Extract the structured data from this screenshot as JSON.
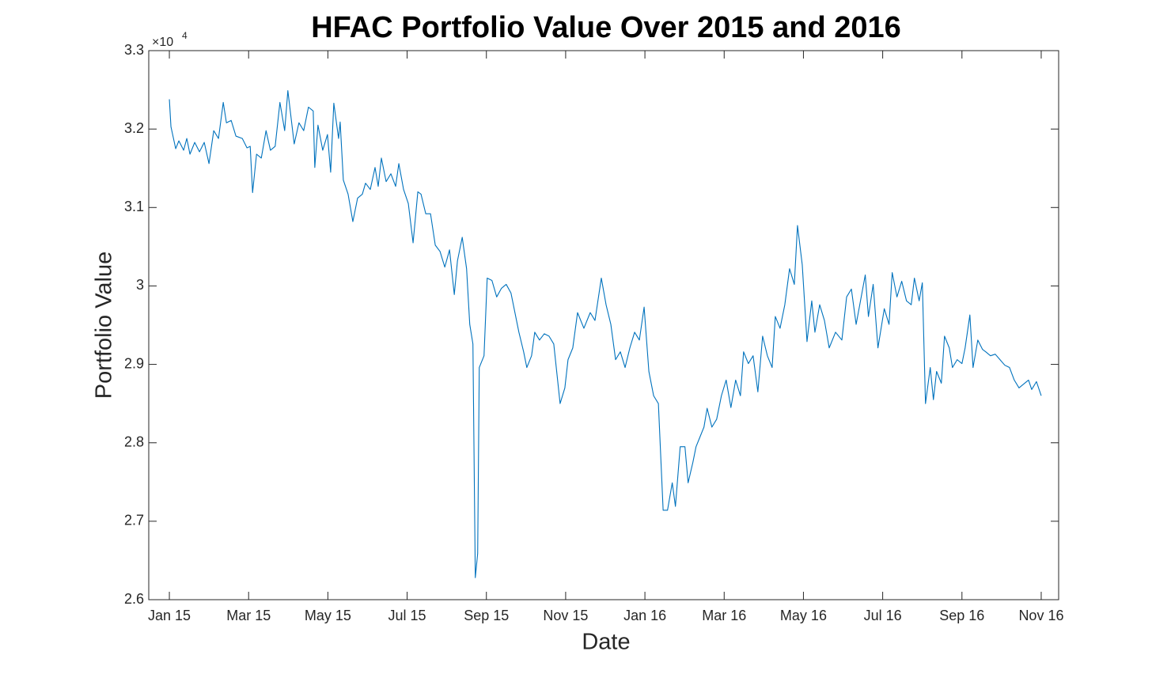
{
  "chart_data": {
    "type": "line",
    "title": "HFAC Portfolio Value Over 2015 and 2016",
    "x_label": "Date",
    "y_label": "Portfolio Value",
    "y_multiplier": {
      "base": "×10",
      "exponent": "4"
    },
    "xlim": [
      -0.52,
      22.44
    ],
    "xticks": [
      {
        "value": 0,
        "label": "Jan 15"
      },
      {
        "value": 2,
        "label": "Mar 15"
      },
      {
        "value": 4,
        "label": "May 15"
      },
      {
        "value": 6,
        "label": "Jul 15"
      },
      {
        "value": 8,
        "label": "Sep 15"
      },
      {
        "value": 10,
        "label": "Nov 15"
      },
      {
        "value": 12,
        "label": "Jan 16"
      },
      {
        "value": 14,
        "label": "Mar 16"
      },
      {
        "value": 16,
        "label": "May 16"
      },
      {
        "value": 18,
        "label": "Jul 16"
      },
      {
        "value": 20,
        "label": "Sep 16"
      },
      {
        "value": 22,
        "label": "Nov 16"
      }
    ],
    "ylim": [
      2.6,
      3.3
    ],
    "yticks": [
      2.6,
      2.7,
      2.8,
      2.9,
      3,
      3.1,
      3.2,
      3.3
    ],
    "grid": false,
    "x": [
      0,
      0.04,
      0.16,
      0.24,
      0.36,
      0.44,
      0.52,
      0.64,
      0.76,
      0.88,
      1.0,
      1.12,
      1.24,
      1.36,
      1.44,
      1.56,
      1.68,
      1.84,
      1.96,
      2.04,
      2.1,
      2.2,
      2.32,
      2.44,
      2.55,
      2.67,
      2.79,
      2.91,
      2.99,
      3.15,
      3.27,
      3.39,
      3.51,
      3.63,
      3.67,
      3.75,
      3.87,
      3.99,
      4.07,
      4.15,
      4.27,
      4.31,
      4.39,
      4.51,
      4.63,
      4.75,
      4.87,
      4.95,
      5.07,
      5.19,
      5.27,
      5.35,
      5.47,
      5.59,
      5.71,
      5.79,
      5.91,
      6.03,
      6.15,
      6.27,
      6.35,
      6.47,
      6.59,
      6.71,
      6.83,
      6.95,
      7.07,
      7.19,
      7.27,
      7.39,
      7.5,
      7.58,
      7.66,
      7.72,
      7.78,
      7.82,
      7.94,
      8.02,
      8.14,
      8.26,
      8.38,
      8.5,
      8.62,
      8.74,
      8.82,
      8.94,
      9.02,
      9.14,
      9.22,
      9.34,
      9.46,
      9.58,
      9.7,
      9.86,
      9.98,
      10.06,
      10.18,
      10.3,
      10.46,
      10.62,
      10.74,
      10.9,
      11.02,
      11.14,
      11.26,
      11.38,
      11.5,
      11.62,
      11.74,
      11.86,
      11.98,
      12.1,
      12.22,
      12.34,
      12.46,
      12.57,
      12.69,
      12.77,
      12.89,
      13.01,
      13.09,
      13.21,
      13.29,
      13.37,
      13.49,
      13.57,
      13.69,
      13.81,
      13.93,
      14.05,
      14.17,
      14.29,
      14.41,
      14.49,
      14.61,
      14.73,
      14.85,
      14.97,
      15.09,
      15.21,
      15.29,
      15.41,
      15.53,
      15.65,
      15.77,
      15.85,
      15.97,
      16.09,
      16.21,
      16.29,
      16.41,
      16.53,
      16.65,
      16.81,
      16.97,
      17.09,
      17.21,
      17.33,
      17.44,
      17.56,
      17.64,
      17.76,
      17.88,
      18.04,
      18.16,
      18.24,
      18.36,
      18.48,
      18.6,
      18.72,
      18.8,
      18.92,
      19.0,
      19.08,
      19.2,
      19.28,
      19.36,
      19.48,
      19.56,
      19.68,
      19.76,
      19.88,
      20.0,
      20.08,
      20.2,
      20.28,
      20.4,
      20.52,
      20.6,
      20.72,
      20.84,
      20.96,
      21.08,
      21.2,
      21.32,
      21.44,
      21.56,
      21.68,
      21.76,
      21.88,
      22.0
    ],
    "series": [
      {
        "color": "#0072bd",
        "values": [
          3.238,
          3.203,
          3.175,
          3.185,
          3.173,
          3.188,
          3.168,
          3.183,
          3.171,
          3.183,
          3.156,
          3.198,
          3.188,
          3.234,
          3.208,
          3.211,
          3.191,
          3.188,
          3.176,
          3.178,
          3.119,
          3.168,
          3.163,
          3.198,
          3.173,
          3.178,
          3.234,
          3.198,
          3.249,
          3.181,
          3.208,
          3.198,
          3.228,
          3.223,
          3.151,
          3.205,
          3.173,
          3.193,
          3.145,
          3.233,
          3.188,
          3.209,
          3.135,
          3.117,
          3.082,
          3.112,
          3.117,
          3.131,
          3.123,
          3.151,
          3.127,
          3.163,
          3.133,
          3.143,
          3.127,
          3.156,
          3.123,
          3.105,
          3.055,
          3.12,
          3.117,
          3.092,
          3.092,
          3.052,
          3.044,
          3.024,
          3.046,
          2.989,
          3.032,
          3.062,
          3.022,
          2.951,
          2.926,
          2.628,
          2.659,
          2.896,
          2.911,
          3.01,
          3.007,
          2.986,
          2.997,
          3.002,
          2.991,
          2.961,
          2.941,
          2.916,
          2.896,
          2.911,
          2.941,
          2.931,
          2.939,
          2.936,
          2.926,
          2.85,
          2.87,
          2.906,
          2.921,
          2.966,
          2.946,
          2.966,
          2.956,
          3.01,
          2.976,
          2.951,
          2.906,
          2.916,
          2.896,
          2.921,
          2.941,
          2.931,
          2.973,
          2.891,
          2.86,
          2.85,
          2.714,
          2.714,
          2.749,
          2.719,
          2.795,
          2.795,
          2.749,
          2.775,
          2.795,
          2.805,
          2.82,
          2.844,
          2.82,
          2.83,
          2.86,
          2.88,
          2.845,
          2.88,
          2.86,
          2.916,
          2.901,
          2.911,
          2.865,
          2.936,
          2.911,
          2.896,
          2.961,
          2.946,
          2.976,
          3.022,
          3.002,
          3.077,
          3.027,
          2.929,
          2.981,
          2.941,
          2.976,
          2.956,
          2.921,
          2.941,
          2.931,
          2.986,
          2.996,
          2.951,
          2.981,
          3.014,
          2.961,
          3.002,
          2.921,
          2.971,
          2.951,
          3.017,
          2.986,
          3.006,
          2.981,
          2.976,
          3.01,
          2.981,
          3.004,
          2.85,
          2.896,
          2.855,
          2.891,
          2.876,
          2.936,
          2.921,
          2.896,
          2.906,
          2.901,
          2.921,
          2.963,
          2.896,
          2.931,
          2.919,
          2.916,
          2.911,
          2.913,
          2.906,
          2.899,
          2.896,
          2.88,
          2.87,
          2.875,
          2.88,
          2.868,
          2.878,
          2.86
        ]
      }
    ]
  }
}
